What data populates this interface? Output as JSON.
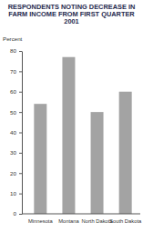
{
  "chart_data": {
    "type": "bar",
    "title": "RESPONDENTS NOTING DECREASE IN FARM INCOME FROM FIRST QUARTER 2001",
    "ylabel": "Percent",
    "categories": [
      "Minnesota",
      "Montana",
      "North Dakota",
      "South Dakota"
    ],
    "values": [
      54,
      77,
      50,
      60
    ],
    "color": "#a3a3a3",
    "ylim": [
      0,
      80
    ],
    "yticks": [
      0,
      10,
      20,
      30,
      40,
      50,
      60,
      70,
      80
    ],
    "grid": false
  }
}
